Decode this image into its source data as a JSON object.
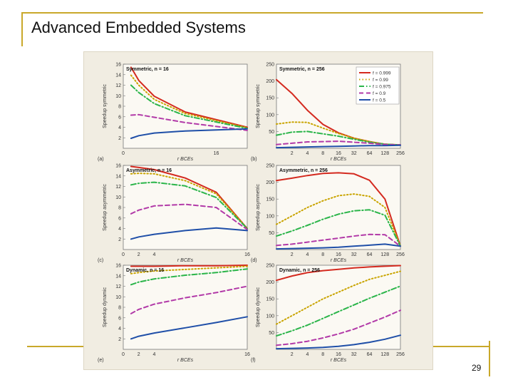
{
  "slide": {
    "title": "Advanced Embedded Systems",
    "page_number": "29"
  },
  "colors": {
    "accent_rule": "#c9a82a",
    "f0999": "#d42a1f",
    "f099": "#c9a400",
    "f0975": "#2bb54a",
    "f09": "#b23aa8",
    "f05": "#1f4fa8"
  },
  "chart_data": [
    {
      "type": "line",
      "panel_label": "(a)",
      "title": "Symmetric, n = 16",
      "ylabel": "Speedup symmetric",
      "xlabel": "r BCEs",
      "x": [
        1,
        2,
        4,
        8,
        16
      ],
      "xticks": [
        "0",
        "",
        "",
        "",
        "16"
      ],
      "ylim": [
        0,
        16
      ],
      "yticks": [
        2,
        4,
        6,
        8,
        10,
        12,
        14,
        16
      ],
      "series": [
        {
          "color_key": "f0999",
          "style": "solid",
          "values": [
            15.4,
            12.9,
            9.9,
            6.9,
            4.0
          ]
        },
        {
          "color_key": "f099",
          "style": "dotted",
          "values": [
            13.9,
            12.0,
            9.3,
            6.6,
            3.9
          ]
        },
        {
          "color_key": "f0975",
          "style": "dashdot",
          "values": [
            12.0,
            10.6,
            8.5,
            6.2,
            3.8
          ]
        },
        {
          "color_key": "f09",
          "style": "dashed",
          "values": [
            6.3,
            6.4,
            5.9,
            4.9,
            3.4
          ]
        },
        {
          "color_key": "f05",
          "style": "solid",
          "values": [
            1.9,
            2.4,
            2.9,
            3.3,
            3.7
          ]
        }
      ]
    },
    {
      "type": "line",
      "panel_label": "(b)",
      "title": "Symmetric, n = 256",
      "ylabel": "Speedup symmetric",
      "xlabel": "r BCEs",
      "x": [
        1,
        2,
        4,
        8,
        16,
        32,
        64,
        128,
        256
      ],
      "xticks": [
        "2",
        "4",
        "8",
        "16",
        "32",
        "64",
        "128",
        "256"
      ],
      "ylim": [
        0,
        250
      ],
      "yticks": [
        50,
        100,
        150,
        200,
        250
      ],
      "legend": {
        "placement": "top-right",
        "entries": [
          "f = 0.999",
          "f = 0.99",
          "f = 0.975",
          "f = 0.9",
          "f = 0.5"
        ]
      },
      "series": [
        {
          "name": "f = 0.999",
          "color_key": "f0999",
          "style": "solid",
          "values": [
            204,
            163,
            113,
            71,
            46,
            30,
            20,
            12,
            10
          ]
        },
        {
          "name": "f = 0.99",
          "color_key": "f099",
          "style": "dotted",
          "values": [
            72,
            78,
            77,
            60,
            44,
            30,
            20,
            12,
            10
          ]
        },
        {
          "name": "f = 0.975",
          "color_key": "f0975",
          "style": "dashdot",
          "values": [
            39,
            48,
            50,
            43,
            36,
            27,
            18,
            12,
            10
          ]
        },
        {
          "name": "f = 0.9",
          "color_key": "f09",
          "style": "dashed",
          "values": [
            11,
            15,
            19,
            20,
            21,
            18,
            15,
            11,
            10
          ]
        },
        {
          "name": "f = 0.5",
          "color_key": "f05",
          "style": "solid",
          "values": [
            2,
            3,
            4,
            5,
            6,
            7,
            8,
            8,
            9
          ]
        }
      ]
    },
    {
      "type": "line",
      "panel_label": "(c)",
      "title": "Asymmetric, n = 16",
      "ylabel": "Speedup asymmetric",
      "xlabel": "r BCEs",
      "x": [
        1,
        2,
        4,
        8,
        12,
        16
      ],
      "xticks": [
        "0",
        "2",
        "4",
        "",
        "",
        "16"
      ],
      "ylim": [
        0,
        16
      ],
      "yticks": [
        2,
        4,
        6,
        8,
        10,
        12,
        14,
        16
      ],
      "series": [
        {
          "color_key": "f0999",
          "style": "solid",
          "values": [
            15.8,
            15.6,
            15.2,
            13.6,
            10.9,
            4.0
          ]
        },
        {
          "color_key": "f099",
          "style": "dotted",
          "values": [
            14.4,
            14.5,
            14.4,
            13.1,
            10.6,
            4.0
          ]
        },
        {
          "color_key": "f0975",
          "style": "dashdot",
          "values": [
            12.3,
            12.6,
            12.8,
            12.1,
            9.9,
            4.0
          ]
        },
        {
          "color_key": "f09",
          "style": "dashed",
          "values": [
            6.8,
            7.5,
            8.3,
            8.6,
            8.0,
            3.8
          ]
        },
        {
          "color_key": "f05",
          "style": "solid",
          "values": [
            2.0,
            2.4,
            2.9,
            3.6,
            4.1,
            3.6
          ]
        }
      ]
    },
    {
      "type": "line",
      "panel_label": "(d)",
      "title": "Asymmetric, n = 256",
      "ylabel": "Speedup asymmetric",
      "xlabel": "r BCEs",
      "x": [
        1,
        2,
        4,
        8,
        16,
        32,
        64,
        128,
        256
      ],
      "xticks": [
        "2",
        "4",
        "8",
        "16",
        "32",
        "64",
        "128",
        "256"
      ],
      "ylim": [
        0,
        250
      ],
      "yticks": [
        50,
        100,
        150,
        200,
        250
      ],
      "series": [
        {
          "color_key": "f0999",
          "style": "solid",
          "values": [
            205,
            212,
            220,
            226,
            228,
            225,
            206,
            150,
            10
          ]
        },
        {
          "color_key": "f099",
          "style": "dotted",
          "values": [
            75,
            100,
            125,
            145,
            160,
            165,
            158,
            125,
            10
          ]
        },
        {
          "color_key": "f0975",
          "style": "dashdot",
          "values": [
            40,
            55,
            72,
            90,
            105,
            115,
            118,
            102,
            10
          ]
        },
        {
          "color_key": "f09",
          "style": "dashed",
          "values": [
            12,
            16,
            22,
            28,
            34,
            40,
            45,
            44,
            10
          ]
        },
        {
          "color_key": "f05",
          "style": "solid",
          "values": [
            2,
            3,
            4,
            5,
            7,
            10,
            13,
            16,
            10
          ]
        }
      ]
    },
    {
      "type": "line",
      "panel_label": "(e)",
      "title": "Dynamic, n = 16",
      "ylabel": "Speedup dynamic",
      "xlabel": "r BCEs",
      "x": [
        1,
        2,
        4,
        8,
        12,
        16
      ],
      "xticks": [
        "0",
        "2",
        "4",
        "",
        "",
        "16"
      ],
      "ylim": [
        0,
        16
      ],
      "yticks": [
        2,
        4,
        6,
        8,
        10,
        12,
        14,
        16
      ],
      "series": [
        {
          "color_key": "f0999",
          "style": "solid",
          "values": [
            15.8,
            15.8,
            15.8,
            15.9,
            15.9,
            16.0
          ]
        },
        {
          "color_key": "f099",
          "style": "dotted",
          "values": [
            14.4,
            14.6,
            14.9,
            15.2,
            15.5,
            15.8
          ]
        },
        {
          "color_key": "f0975",
          "style": "dashdot",
          "values": [
            12.3,
            12.8,
            13.4,
            14.1,
            14.6,
            15.3
          ]
        },
        {
          "color_key": "f09",
          "style": "dashed",
          "values": [
            6.8,
            7.6,
            8.6,
            9.8,
            10.8,
            12.0
          ]
        },
        {
          "color_key": "f05",
          "style": "solid",
          "values": [
            2.0,
            2.5,
            3.1,
            4.1,
            5.1,
            6.2
          ]
        }
      ]
    },
    {
      "type": "line",
      "panel_label": "(f)",
      "title": "Dynamic, n = 256",
      "ylabel": "Speedup dynamic",
      "xlabel": "r BCEs",
      "x": [
        1,
        2,
        4,
        8,
        16,
        32,
        64,
        128,
        256
      ],
      "xticks": [
        "2",
        "4",
        "8",
        "16",
        "32",
        "64",
        "128",
        "256"
      ],
      "ylim": [
        0,
        250
      ],
      "yticks": [
        50,
        100,
        150,
        200,
        250
      ],
      "series": [
        {
          "color_key": "f0999",
          "style": "solid",
          "values": [
            205,
            218,
            228,
            234,
            238,
            242,
            245,
            247,
            249
          ]
        },
        {
          "color_key": "f099",
          "style": "dotted",
          "values": [
            75,
            100,
            125,
            150,
            170,
            190,
            208,
            220,
            232
          ]
        },
        {
          "color_key": "f0975",
          "style": "dashdot",
          "values": [
            40,
            55,
            72,
            92,
            112,
            132,
            152,
            170,
            188
          ]
        },
        {
          "color_key": "f09",
          "style": "dashed",
          "values": [
            12,
            17,
            24,
            34,
            46,
            60,
            78,
            96,
            116
          ]
        },
        {
          "color_key": "f05",
          "style": "solid",
          "values": [
            2,
            3,
            4,
            6,
            9,
            14,
            21,
            30,
            42
          ]
        }
      ]
    }
  ]
}
